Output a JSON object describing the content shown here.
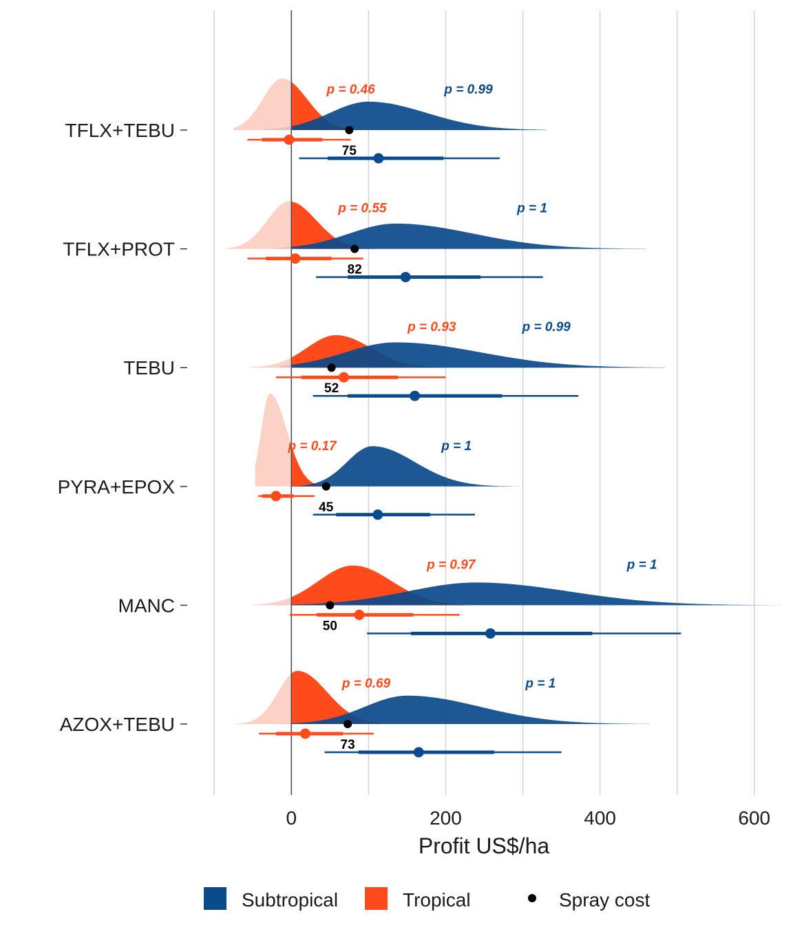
{
  "colors": {
    "subtropical": "#0b4a8b",
    "tropical": "#ff4a1c",
    "tropical_light": "#fcd2c7",
    "spray_cost": "#000000",
    "grid": "#d3d3d3",
    "zero_line": "#4d4d4d"
  },
  "chart_data": {
    "type": "ridgeline",
    "xlabel": "Profit US$/ha",
    "ylabel": "",
    "xlim": [
      -135,
      635
    ],
    "x_ticks": [
      0,
      200,
      400,
      600
    ],
    "x_tick_labels": [
      "0",
      "200",
      "400",
      "600"
    ],
    "grid": true,
    "legend_position": "bottom",
    "legend": [
      {
        "key": "subtropical",
        "label": "Subtropical",
        "shape": "square"
      },
      {
        "key": "tropical",
        "label": "Tropical",
        "shape": "square"
      },
      {
        "key": "spray_cost",
        "label": "Spray cost",
        "shape": "point"
      }
    ],
    "treatments": [
      {
        "name": "TFLX+TEBU",
        "spray_cost": 75,
        "tropical": {
          "p": "p = 0.46",
          "median": -3,
          "q_inner": [
            -38,
            40
          ],
          "q_outer": [
            -57,
            77
          ],
          "dist_min": -75,
          "dist_max": 95,
          "mode": -12,
          "sd_left": 25,
          "sd_right": 32,
          "peak": 1.0
        },
        "subtropical": {
          "p": "p = 0.99",
          "median": 113,
          "q_inner": [
            47,
            197
          ],
          "q_outer": [
            10,
            270
          ],
          "dist_min": -35,
          "dist_max": 330,
          "mode": 100,
          "sd_left": 50,
          "sd_right": 75,
          "peak": 0.55
        }
      },
      {
        "name": "TFLX+PROT",
        "spray_cost": 82,
        "tropical": {
          "p": "p = 0.55",
          "median": 5,
          "q_inner": [
            -33,
            52
          ],
          "q_outer": [
            -57,
            93
          ],
          "dist_min": -85,
          "dist_max": 110,
          "mode": -3,
          "sd_left": 28,
          "sd_right": 35,
          "peak": 0.92
        },
        "subtropical": {
          "p": "p = 1",
          "median": 148,
          "q_inner": [
            73,
            245
          ],
          "q_outer": [
            32,
            326
          ],
          "dist_min": -25,
          "dist_max": 460,
          "mode": 135,
          "sd_left": 60,
          "sd_right": 100,
          "peak": 0.49
        }
      },
      {
        "name": "TEBU",
        "spray_cost": 52,
        "tropical": {
          "p": "p = 0.93",
          "median": 68,
          "q_inner": [
            13,
            138
          ],
          "q_outer": [
            -20,
            200
          ],
          "dist_min": -55,
          "dist_max": 200,
          "mode": 58,
          "sd_left": 38,
          "sd_right": 45,
          "peak": 0.63
        },
        "subtropical": {
          "p": "p = 0.99",
          "median": 160,
          "q_inner": [
            73,
            273
          ],
          "q_outer": [
            28,
            372
          ],
          "dist_min": -15,
          "dist_max": 485,
          "mode": 135,
          "sd_left": 65,
          "sd_right": 110,
          "peak": 0.49
        }
      },
      {
        "name": "PYRA+EPOX",
        "spray_cost": 45,
        "tropical": {
          "p": "p = 0.17",
          "median": -20,
          "q_inner": [
            -38,
            3
          ],
          "q_outer": [
            -43,
            30
          ],
          "dist_min": -47,
          "dist_max": 45,
          "mode": -28,
          "sd_left": 11,
          "sd_right": 22,
          "peak": 1.8
        },
        "subtropical": {
          "p": "p = 1",
          "median": 112,
          "q_inner": [
            58,
            180
          ],
          "q_outer": [
            28,
            238
          ],
          "dist_min": -20,
          "dist_max": 300,
          "mode": 105,
          "sd_left": 33,
          "sd_right": 55,
          "peak": 0.78
        }
      },
      {
        "name": "MANC",
        "spray_cost": 50,
        "tropical": {
          "p": "p = 0.97",
          "median": 88,
          "q_inner": [
            33,
            158
          ],
          "q_outer": [
            -2,
            218
          ],
          "dist_min": -50,
          "dist_max": 225,
          "mode": 80,
          "sd_left": 45,
          "sd_right": 50,
          "peak": 0.77
        },
        "subtropical": {
          "p": "p = 1",
          "median": 258,
          "q_inner": [
            155,
            390
          ],
          "q_outer": [
            98,
            505
          ],
          "dist_min": -20,
          "dist_max": 635,
          "mode": 240,
          "sd_left": 90,
          "sd_right": 120,
          "peak": 0.44
        }
      },
      {
        "name": "AZOX+TEBU",
        "spray_cost": 73,
        "tropical": {
          "p": "p = 0.69",
          "median": 18,
          "q_inner": [
            -20,
            67
          ],
          "q_outer": [
            -42,
            107
          ],
          "dist_min": -75,
          "dist_max": 115,
          "mode": 8,
          "sd_left": 25,
          "sd_right": 38,
          "peak": 1.03
        },
        "subtropical": {
          "p": "p = 1",
          "median": 165,
          "q_inner": [
            87,
            263
          ],
          "q_outer": [
            43,
            350
          ],
          "dist_min": -20,
          "dist_max": 465,
          "mode": 150,
          "sd_left": 55,
          "sd_right": 95,
          "peak": 0.55
        }
      }
    ]
  }
}
